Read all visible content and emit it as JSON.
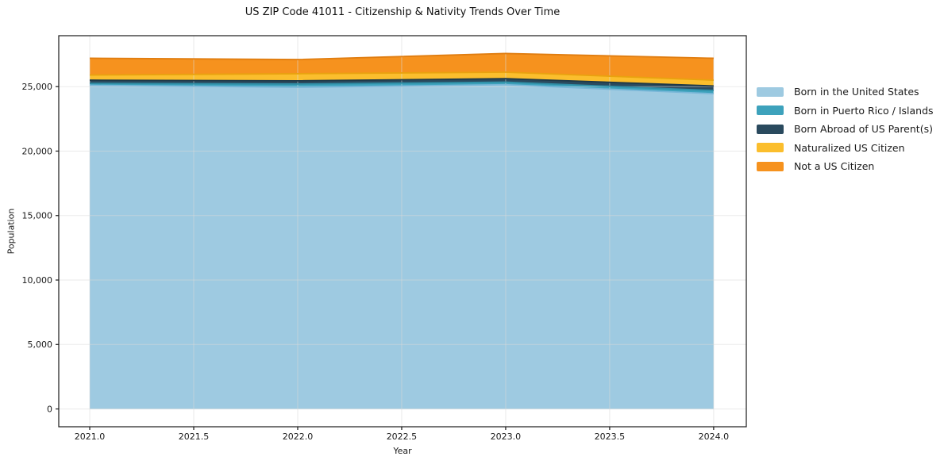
{
  "figure": {
    "background": "#ffffff"
  },
  "chart_data": {
    "type": "area",
    "stacked": true,
    "title": "US ZIP Code 41011 - Citizenship & Nativity Trends Over Time",
    "xlabel": "Year",
    "ylabel": "Population",
    "x": [
      2021,
      2022,
      2023,
      2024
    ],
    "series": [
      {
        "name": "Born in the United States",
        "color": "#9ECAE1",
        "edge_color": "#79B7D8",
        "values": [
          25100,
          24950,
          25150,
          24450
        ]
      },
      {
        "name": "Born in Puerto Rico / Islands",
        "color": "#3DA2BC",
        "edge_color": "#2F8EA6",
        "values": [
          150,
          250,
          200,
          250
        ]
      },
      {
        "name": "Born Abroad of US Parent(s)",
        "color": "#2A4A5E",
        "edge_color": "#1F3948",
        "values": [
          250,
          250,
          270,
          350
        ]
      },
      {
        "name": "Naturalized US Citizen",
        "color": "#FBBE2D",
        "edge_color": "#E9A20F",
        "values": [
          400,
          550,
          500,
          450
        ]
      },
      {
        "name": "Not a US Citizen",
        "color": "#F6921E",
        "edge_color": "#E07D10",
        "values": [
          1300,
          1100,
          1450,
          1700
        ]
      }
    ],
    "xticks": {
      "values": [
        2021.0,
        2021.5,
        2022.0,
        2022.5,
        2023.0,
        2023.5,
        2024.0
      ],
      "labels": [
        "2021.0",
        "2021.5",
        "2022.0",
        "2022.5",
        "2023.0",
        "2023.5",
        "2024.0"
      ]
    },
    "yticks": {
      "values": [
        0,
        5000,
        10000,
        15000,
        20000,
        25000
      ],
      "labels": [
        "0",
        "5,000",
        "10,000",
        "15,000",
        "20,000",
        "25,000"
      ]
    },
    "xlim": [
      2020.851,
      2024.157
    ],
    "ylim": [
      -1380,
      28950
    ],
    "grid": true,
    "legend_position": "right-outside"
  },
  "style": {
    "grid_color": "#d9d9d9",
    "spine_color": "#1a1a1a",
    "tick_color": "#1a1a1a",
    "text_color": "#1a1a1a"
  }
}
